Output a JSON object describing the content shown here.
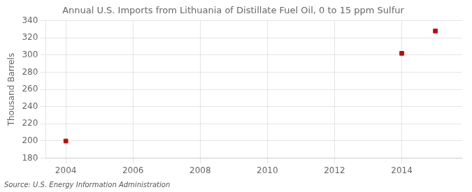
{
  "chart_data": {
    "type": "scatter",
    "title": "Annual U.S. Imports from Lithuania of Distillate Fuel Oil, 0 to 15 ppm Sulfur",
    "ylabel": "Thousand Barrels",
    "annotation": "Source: U.S. Energy Information Administration",
    "x": [
      2004,
      2014,
      2015
    ],
    "values": [
      200,
      302,
      328
    ],
    "color": "#cc0000",
    "marker": "square",
    "xlim": [
      2003.4,
      2015.8
    ],
    "ylim": [
      180,
      340
    ],
    "xticks": [
      2004,
      2006,
      2008,
      2010,
      2012,
      2014
    ],
    "yticks": [
      180,
      200,
      220,
      240,
      260,
      280,
      300,
      320,
      340
    ],
    "grid": true
  }
}
